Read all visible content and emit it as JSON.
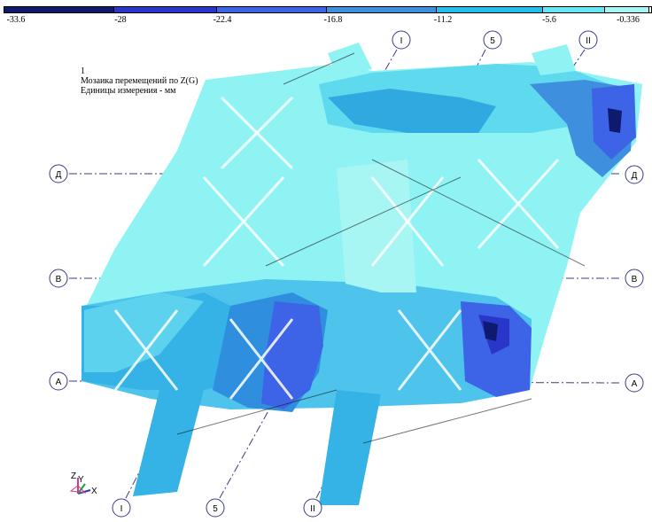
{
  "legend": {
    "ticks": [
      "-33.6",
      "-28",
      "-22.4",
      "-16.8",
      "-11.2",
      "-5.6",
      "-0.336"
    ],
    "colors": [
      "#0d1a6e",
      "#2a36c9",
      "#3d63e6",
      "#3f8fdf",
      "#22bfe8",
      "#66e6f0",
      "#a8f6f4",
      "#e8ffee"
    ]
  },
  "info": {
    "line1": "1",
    "line2": "Мозаика перемещений по Z(G)",
    "line3": "Единицы измерения - мм"
  },
  "axes_markers": {
    "top": [
      "I",
      "5",
      "II"
    ],
    "bottom": [
      "I",
      "5",
      "II"
    ],
    "left": [
      "Д",
      "В",
      "А"
    ],
    "right": [
      "Д",
      "В",
      "А"
    ]
  },
  "triad": {
    "z": "Z",
    "y": "Y",
    "x": "X"
  }
}
